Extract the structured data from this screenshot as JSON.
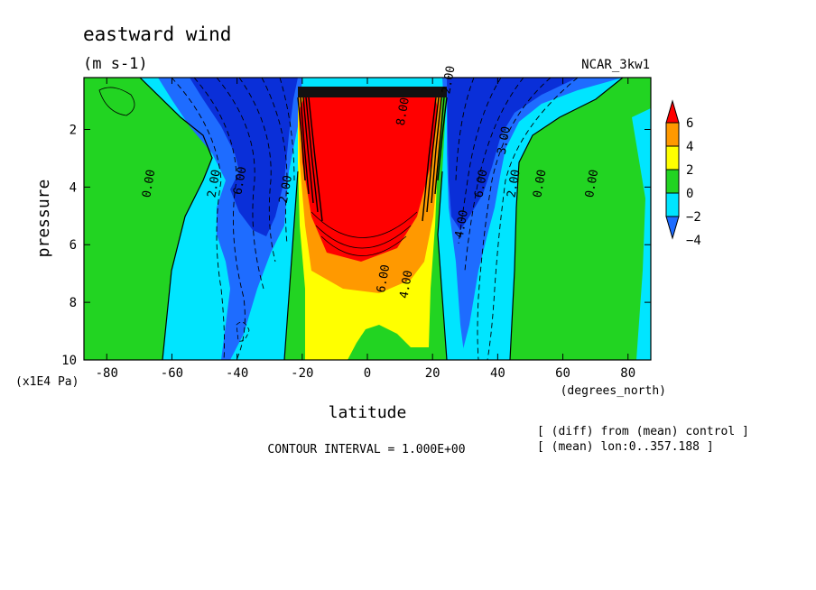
{
  "chart_data": {
    "type": "heatmap",
    "title": "eastward wind",
    "units": "(m s-1)",
    "run_label": "NCAR_3kw1",
    "xlabel": "latitude",
    "xunits": "(degrees_north)",
    "ylabel": "pressure",
    "yunits": "(x1E4 Pa)",
    "xlim": [
      -87,
      87
    ],
    "ylim": [
      10,
      0.2
    ],
    "x_ticks": [
      -80,
      -60,
      -40,
      -20,
      0,
      20,
      40,
      60,
      80
    ],
    "x_tick_labels": [
      "-80",
      "-60",
      "-40",
      "-20",
      "0",
      "20",
      "40",
      "60",
      "80"
    ],
    "y_ticks": [
      2,
      4,
      6,
      8,
      10
    ],
    "y_tick_labels": [
      "2",
      "4",
      "6",
      "8",
      "10"
    ],
    "colorbar": {
      "levels": [
        -4,
        -2,
        0,
        2,
        4,
        6
      ],
      "level_labels": [
        "6",
        "4",
        "2",
        "0",
        "−2",
        "−4"
      ],
      "colors": [
        "#1e6cff",
        "#00e5ff",
        "#22d422",
        "#ffff00",
        "#ff9900",
        "#ff0000"
      ]
    },
    "contour_labels": [
      {
        "text": "0.00",
        "lat": -66,
        "p": 3.9
      },
      {
        "text": "2.00",
        "lat": -46,
        "p": 3.9
      },
      {
        "text": "6.00",
        "lat": -38,
        "p": 3.8
      },
      {
        "text": "2.00",
        "lat": -24,
        "p": 4.1
      },
      {
        "text": "2.00",
        "lat": 26,
        "p": 0.3
      },
      {
        "text": "8.00",
        "lat": 12,
        "p": 1.4
      },
      {
        "text": "6.00",
        "lat": 6,
        "p": 7.2
      },
      {
        "text": "4.00",
        "lat": 13,
        "p": 7.4
      },
      {
        "text": "6.00",
        "lat": 36,
        "p": 3.9
      },
      {
        "text": "2.00",
        "lat": 46,
        "p": 3.9
      },
      {
        "text": "0.00",
        "lat": 54,
        "p": 3.9
      },
      {
        "text": "0.00",
        "lat": 70,
        "p": 3.9
      },
      {
        "text": "3.00",
        "lat": 43,
        "p": 2.4
      },
      {
        "text": "4.00",
        "lat": 30,
        "p": 5.3
      }
    ],
    "grid": false,
    "legend": "right"
  },
  "footer": {
    "contour_interval": "CONTOUR INTERVAL = 1.000E+00",
    "diff_note": "[ (diff) from (mean) control ]",
    "mean_note": "[ (mean) lon:0..357.188 ]"
  }
}
